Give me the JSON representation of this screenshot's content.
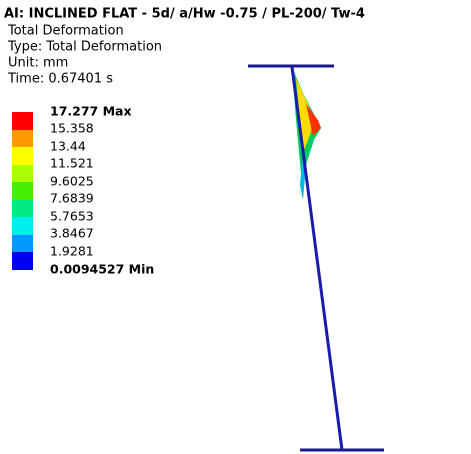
{
  "header": {
    "title": "AI: INCLINED FLAT - 5d/ a/Hw -0.75 / PL-200/ Tw-4",
    "lines": [
      "Total Deformation",
      "Type: Total Deformation",
      "Unit: mm",
      "Time: 0.67401 s"
    ]
  },
  "legend": {
    "labels": [
      "17.277 Max",
      "15.358",
      "13.44",
      "11.521",
      "9.6025",
      "7.6839",
      "5.7653",
      "3.8467",
      "1.9281",
      "0.0094527 Min"
    ]
  }
}
